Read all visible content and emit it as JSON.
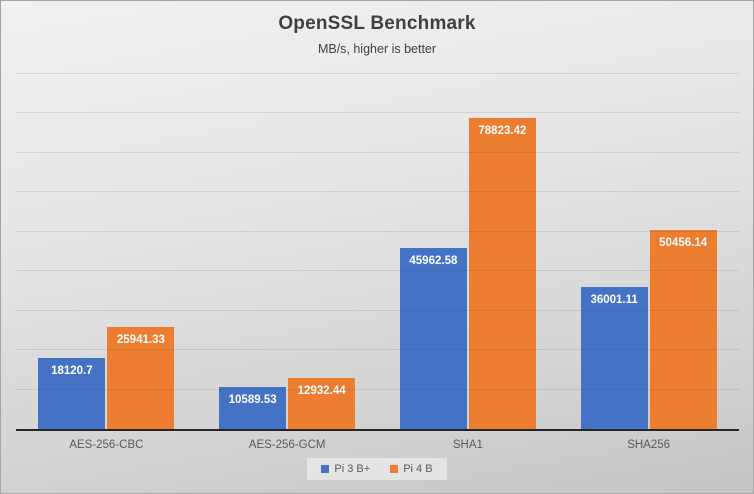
{
  "chart_data": {
    "type": "bar",
    "title": "OpenSSL Benchmark",
    "subtitle": "MB/s, higher is better",
    "categories": [
      "AES-256-CBC",
      "AES-256-GCM",
      "SHA1",
      "SHA256"
    ],
    "series": [
      {
        "name": "Pi 3 B+",
        "color": "#4472C4",
        "values": [
          18120.7,
          10589.53,
          45962.58,
          36001.11
        ]
      },
      {
        "name": "Pi 4 B",
        "color": "#ED7D31",
        "values": [
          25941.33,
          12932.44,
          78823.42,
          50456.14
        ]
      }
    ],
    "data_labels": [
      "18120.7",
      "25941.33",
      "10589.53",
      "12932.44",
      "45962.58",
      "78823.42",
      "36001.11",
      "50456.14"
    ],
    "xlabel": "",
    "ylabel": "",
    "ylim": [
      0,
      90000
    ],
    "gridline_step": 10000,
    "grid": true,
    "y_axis_tick_labels_visible": false,
    "legend_position": "bottom",
    "data_label_position": "inside-end",
    "data_label_color": "#ffffff",
    "background": "gray-gradient",
    "axis_line_color": "#262626",
    "text_color": "#595959",
    "title_color": "#3f3f3f"
  }
}
